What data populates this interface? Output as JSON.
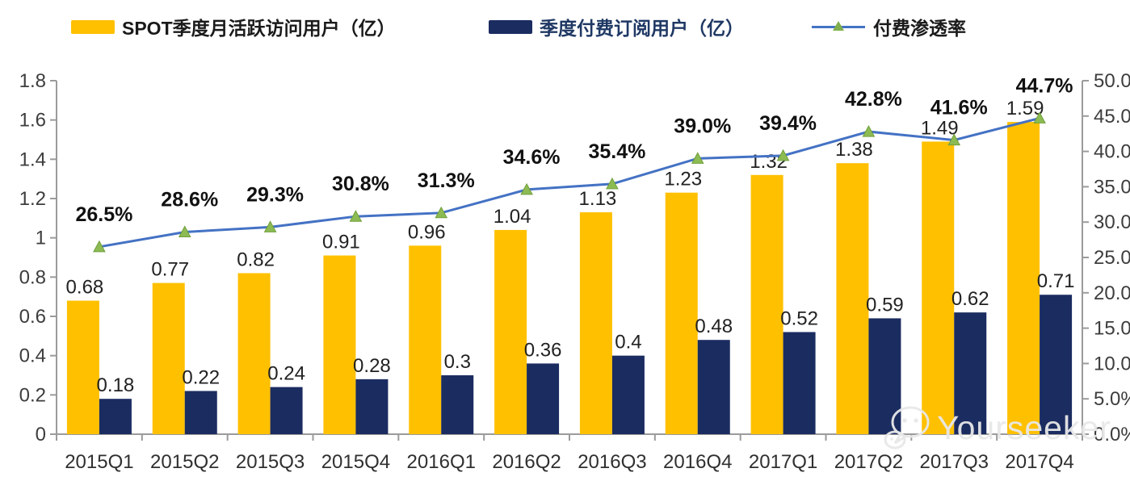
{
  "legend": {
    "items": [
      {
        "label": "SPOT季度月活跃访问用户（亿）",
        "swatch": "bar",
        "color": "#FFC000"
      },
      {
        "label": "季度付费订阅用户（亿）",
        "swatch": "bar",
        "color": "#1B2C60"
      },
      {
        "label": "付费渗透率",
        "swatch": "line",
        "color": "#4472C4",
        "marker_color": "#7FAE4E"
      }
    ]
  },
  "watermark": {
    "text": "Yourseeker",
    "icon": "wechat-icon"
  },
  "chart_data": {
    "type": "bar",
    "subtype": "grouped-bar-with-line-combo",
    "categories": [
      "2015Q1",
      "2015Q2",
      "2015Q3",
      "2015Q4",
      "2016Q1",
      "2016Q2",
      "2016Q3",
      "2016Q4",
      "2017Q1",
      "2017Q2",
      "2017Q3",
      "2017Q4"
    ],
    "series": [
      {
        "name": "SPOT季度月活跃访问用户（亿）",
        "type": "bar",
        "axis": "left",
        "color": "#FFC000",
        "values": [
          0.68,
          0.77,
          0.82,
          0.91,
          0.96,
          1.04,
          1.13,
          1.23,
          1.32,
          1.38,
          1.49,
          1.59
        ],
        "labels": [
          "0.68",
          "0.77",
          "0.82",
          "0.91",
          "0.96",
          "1.04",
          "1.13",
          "1.23",
          "1.32",
          "1.38",
          "1.49",
          "1.59"
        ]
      },
      {
        "name": "季度付费订阅用户（亿）",
        "type": "bar",
        "axis": "left",
        "color": "#1B2C60",
        "values": [
          0.18,
          0.22,
          0.24,
          0.28,
          0.3,
          0.36,
          0.4,
          0.48,
          0.52,
          0.59,
          0.62,
          0.71
        ],
        "labels": [
          "0.18",
          "0.22",
          "0.24",
          "0.28",
          "0.3",
          "0.36",
          "0.4",
          "0.48",
          "0.52",
          "0.59",
          "0.62",
          "0.71"
        ]
      },
      {
        "name": "付费渗透率",
        "type": "line",
        "axis": "right",
        "color": "#4472C4",
        "marker": "triangle",
        "marker_fill": "#8DBB53",
        "marker_stroke": "#6F9F3C",
        "values": [
          26.5,
          28.6,
          29.3,
          30.8,
          31.3,
          34.6,
          35.4,
          39.0,
          39.4,
          42.8,
          41.6,
          44.7
        ],
        "labels": [
          "26.5%",
          "28.6%",
          "29.3%",
          "30.8%",
          "31.3%",
          "34.6%",
          "35.4%",
          "39.0%",
          "39.4%",
          "42.8%",
          "41.6%",
          "44.7%"
        ]
      }
    ],
    "left_axis": {
      "min": 0,
      "max": 1.8,
      "step": 0.2,
      "ticks": [
        "0",
        "0.2",
        "0.4",
        "0.6",
        "0.8",
        "1",
        "1.2",
        "1.4",
        "1.6",
        "1.8"
      ]
    },
    "right_axis": {
      "min": 0,
      "max": 50,
      "step": 5,
      "ticks": [
        "0.0%",
        "5.0%",
        "10.0%",
        "15.0%",
        "20.0%",
        "25.0%",
        "30.0%",
        "35.0%",
        "40.0%",
        "45.0%",
        "50.0%"
      ]
    },
    "grid": false,
    "legend_position": "top",
    "axis_color": "#9B9B9B"
  }
}
